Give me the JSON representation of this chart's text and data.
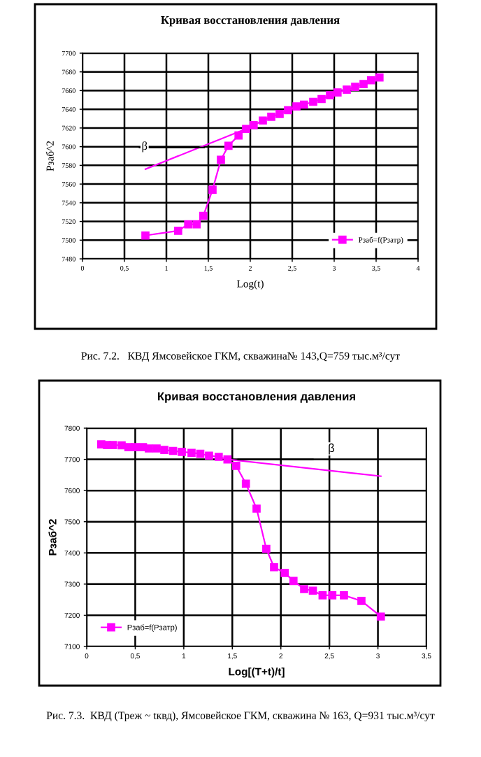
{
  "chart_data": [
    {
      "type": "line",
      "title": "Кривая восстановления давления",
      "xlabel": "Log(t)",
      "ylabel": "Pзаб^2",
      "xlim": [
        0,
        4
      ],
      "xticks": [
        0,
        {
          "value": 0.5,
          "label": "0,5"
        },
        1,
        {
          "value": 1.5,
          "label": "1,5"
        },
        2,
        {
          "value": 2.5,
          "label": "2,5"
        },
        3,
        {
          "value": 3.5,
          "label": "3,5"
        },
        4
      ],
      "ylim": [
        7480,
        7700
      ],
      "yticks": [
        7480,
        7500,
        7520,
        7540,
        7560,
        7580,
        7600,
        7620,
        7640,
        7660,
        7680,
        7700
      ],
      "grid": true,
      "legend": "lower right",
      "line_style": "solid",
      "series": [
        {
          "name": "Pзаб=f(Pзатр)",
          "color": "#ff00ff",
          "marker": "square",
          "x": [
            0.75,
            1.14,
            1.26,
            1.36,
            1.44,
            1.55,
            1.65,
            1.74,
            1.86,
            1.95,
            2.04,
            2.15,
            2.25,
            2.35,
            2.45,
            2.55,
            2.64,
            2.75,
            2.85,
            2.95,
            3.04,
            3.15,
            3.25,
            3.35,
            3.44,
            3.54
          ],
          "values": [
            7505,
            7510,
            7517,
            7517,
            7526,
            7554,
            7586,
            7601,
            7612,
            7619,
            7623,
            7628,
            7632,
            7635,
            7639,
            7643,
            7645,
            7648,
            7651,
            7655,
            7658,
            7661,
            7664,
            7667,
            7671,
            7674
          ]
        },
        {
          "color": "#ff00ff",
          "marker": "none",
          "x": [
            0.75,
            1.95
          ],
          "values": [
            7576,
            7619
          ]
        },
        {
          "color": "#000000",
          "marker": "none",
          "x": [
            0.68,
            1.45
          ],
          "values": [
            7599,
            7599
          ]
        }
      ],
      "annotations": [
        "β",
        "Рис. 7.2.   КВД Ямсовейское ГКМ, скважина№ 143,Q=759 тыс.м³/сут"
      ]
    },
    {
      "type": "line",
      "title": "Кривая восстановления давления",
      "xlabel": "Log[(T+t)/t]",
      "ylabel": "Рзаб^2",
      "xlim": [
        0,
        3.5
      ],
      "xticks": [
        0,
        {
          "value": 0.5,
          "label": "0,5"
        },
        1,
        {
          "value": 1.5,
          "label": "1,5"
        },
        2,
        {
          "value": 2.5,
          "label": "2,5"
        },
        3,
        {
          "value": 3.5,
          "label": "3,5"
        }
      ],
      "ylim": [
        7100,
        7800
      ],
      "yticks": [
        7100,
        7200,
        7300,
        7400,
        7500,
        7600,
        7700,
        7800
      ],
      "grid": true,
      "legend": "lower left",
      "line_style": "solid",
      "series": [
        {
          "name": "Рзаб=f(Рзатр)",
          "color": "#ff00ff",
          "marker": "square",
          "x": [
            0.15,
            0.21,
            0.27,
            0.36,
            0.43,
            0.5,
            0.58,
            0.64,
            0.72,
            0.8,
            0.89,
            0.98,
            1.08,
            1.17,
            1.26,
            1.36,
            1.45,
            1.54,
            1.64,
            1.75,
            1.85,
            1.93,
            2.04,
            2.13,
            2.24,
            2.33,
            2.43,
            2.53,
            2.65,
            2.83,
            3.03
          ],
          "values": [
            7748,
            7746,
            7746,
            7745,
            7739,
            7739,
            7739,
            7735,
            7735,
            7730,
            7727,
            7724,
            7721,
            7718,
            7712,
            7708,
            7700,
            7679,
            7622,
            7542,
            7413,
            7354,
            7336,
            7310,
            7284,
            7279,
            7264,
            7264,
            7264,
            7246,
            7196
          ]
        },
        {
          "color": "#ff00ff",
          "marker": "none",
          "x": [
            1.45,
            3.03
          ],
          "values": [
            7700,
            7646
          ]
        },
        {
          "color": "#000000",
          "marker": "none",
          "x": [
            1.56,
            2.33
          ],
          "values": [
            7700,
            7700
          ]
        }
      ],
      "annotations": [
        "β",
        "Рис. 7.3.  КВД (Треж ~ tквд), Ямсовейское ГКМ, скважина № 163, Q=931 тыс.м³/сут"
      ]
    }
  ]
}
